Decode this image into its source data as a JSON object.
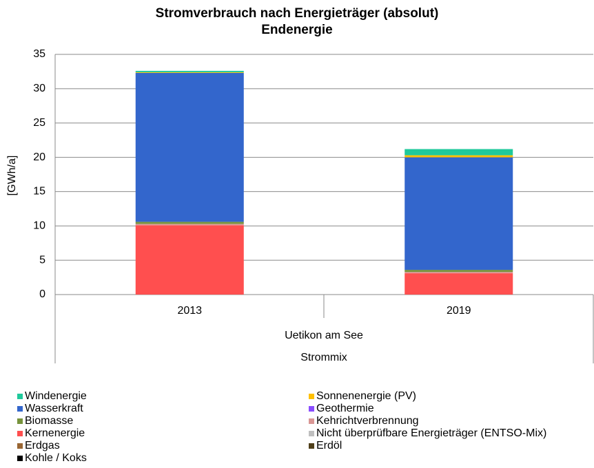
{
  "chart_data": {
    "type": "stacked-bar",
    "title": "Stromverbrauch nach Energieträger (absolut)",
    "subtitle": "Endenergie",
    "y_label": "[GWh/a]",
    "categories": [
      "2013",
      "2019"
    ],
    "group_label": "Uetikon am See",
    "subgroup_label": "Strommix",
    "ylim": [
      0,
      35
    ],
    "yticks": [
      0,
      5,
      10,
      15,
      20,
      25,
      30,
      35
    ],
    "grid": true,
    "series": [
      {
        "name": "Windenergie",
        "color": "#1fc99b",
        "values": [
          0.2,
          0.9
        ]
      },
      {
        "name": "Sonnenenergie (PV)",
        "color": "#ffc000",
        "values": [
          0.1,
          0.3
        ]
      },
      {
        "name": "Wasserkraft",
        "color": "#3366cc",
        "values": [
          21.7,
          16.4
        ]
      },
      {
        "name": "Geothermie",
        "color": "#8a4dff",
        "values": [
          0,
          0
        ]
      },
      {
        "name": "Biomasse",
        "color": "#77933c",
        "values": [
          0.3,
          0.3
        ]
      },
      {
        "name": "Kehrichtverbrennung",
        "color": "#d99694",
        "values": [
          0.2,
          0.2
        ]
      },
      {
        "name": "Kernenergie",
        "color": "#ff4f4f",
        "values": [
          10.1,
          3.1
        ]
      },
      {
        "name": "Nicht überprüfbare Energieträger (ENTSO-Mix)",
        "color": "#bfbfbf",
        "values": [
          0,
          0
        ]
      },
      {
        "name": "Erdgas",
        "color": "#996633",
        "values": [
          0,
          0
        ]
      },
      {
        "name": "Erdöl",
        "color": "#4f3f1a",
        "values": [
          0,
          0
        ]
      },
      {
        "name": "Kohle / Koks",
        "color": "#000000",
        "values": [
          0,
          0
        ]
      }
    ]
  }
}
